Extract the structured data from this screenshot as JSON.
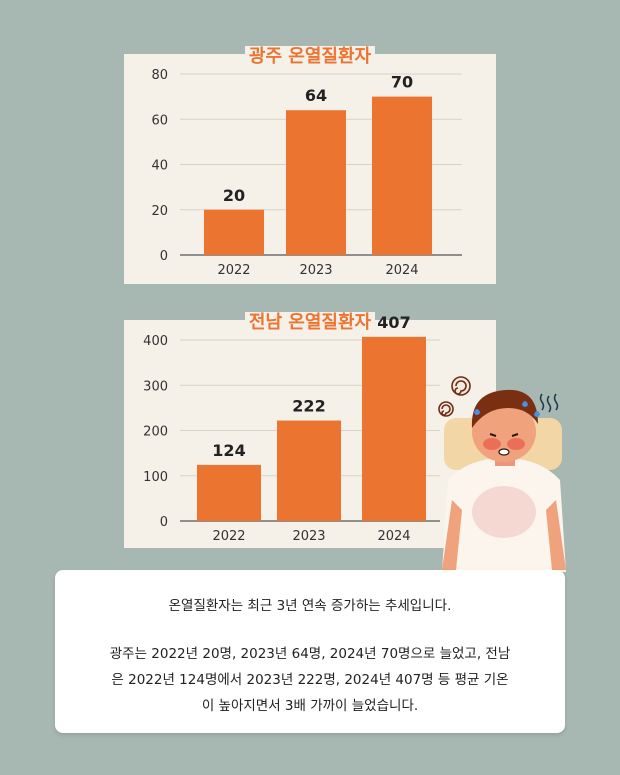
{
  "chart_data": [
    {
      "type": "bar",
      "title": "광주 온열질환자",
      "categories": [
        "2022",
        "2023",
        "2024"
      ],
      "values": [
        20,
        64,
        70
      ],
      "value_labels": [
        "20",
        "64",
        "70"
      ],
      "ylim": [
        0,
        80
      ],
      "yticks": [
        "0",
        "20",
        "40",
        "60",
        "80"
      ],
      "grid": true,
      "bar_color": "#ec7431"
    },
    {
      "type": "bar",
      "title": "전남 온열질환자",
      "categories": [
        "2022",
        "2023",
        "2024"
      ],
      "values": [
        124,
        222,
        407
      ],
      "value_labels": [
        "124",
        "222",
        "407"
      ],
      "ylim": [
        0,
        400
      ],
      "yticks": [
        "0",
        "100",
        "200",
        "300",
        "400"
      ],
      "grid": true,
      "bar_color": "#ec7431"
    }
  ],
  "summary": {
    "line1": "온열질환자는 최근 3년 연속 증가하는 추세입니다.",
    "line2": "광주는 2022년 20명, 2023년 64명, 2024년 70명으로 늘었고, 전남",
    "line3": "은 2022년 124명에서 2023년 222명, 2024년 407명 등 평균 기온",
    "line4": "이 높아지면서 3배 가까이 늘었습니다."
  },
  "colors": {
    "background": "#a7b7b1",
    "panel": "#f5f1e8",
    "accent": "#ec7431"
  },
  "illustration": "overheated-person-icon"
}
